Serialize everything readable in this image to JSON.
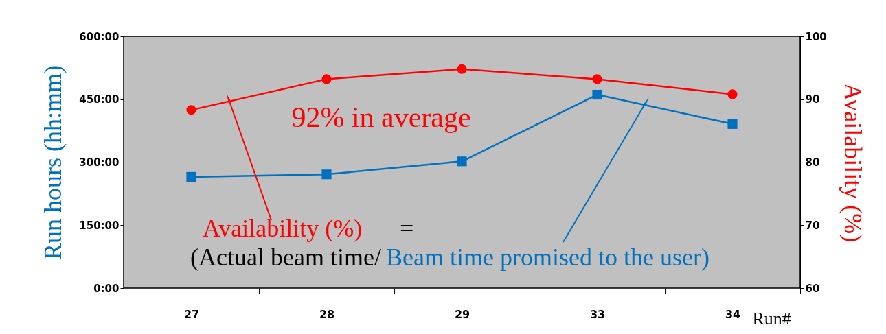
{
  "chart_data": {
    "type": "line",
    "categories": [
      "27",
      "28",
      "29",
      "33",
      "34"
    ],
    "xlabel": "Run#",
    "ylabel": "Run hours (hh:mm)",
    "y2label": "Availability (%)",
    "series": [
      {
        "color": "#0070c0",
        "marker": "square",
        "values": [
          265,
          271,
          302,
          461,
          391
        ]
      },
      {
        "color": "#ff0000",
        "marker": "circle",
        "axis": "y2",
        "values": [
          88.3,
          93.2,
          94.8,
          93.2,
          90.8
        ]
      }
    ],
    "ylim": [
      0,
      600
    ],
    "yticks": [
      {
        "value": 0,
        "label": "0:00"
      },
      {
        "value": 150,
        "label": "150:00"
      },
      {
        "value": 300,
        "label": "300:00"
      },
      {
        "value": 450,
        "label": "450:00"
      },
      {
        "value": 600,
        "label": "600:00"
      }
    ],
    "y2lim": [
      60,
      100
    ],
    "y2ticks": [
      60,
      70,
      80,
      90,
      100
    ],
    "grid": false,
    "annotations": [
      "92% in average",
      "Availability (%)",
      "=",
      "(Actual beam time/",
      "Beam time promised to the user)"
    ]
  }
}
